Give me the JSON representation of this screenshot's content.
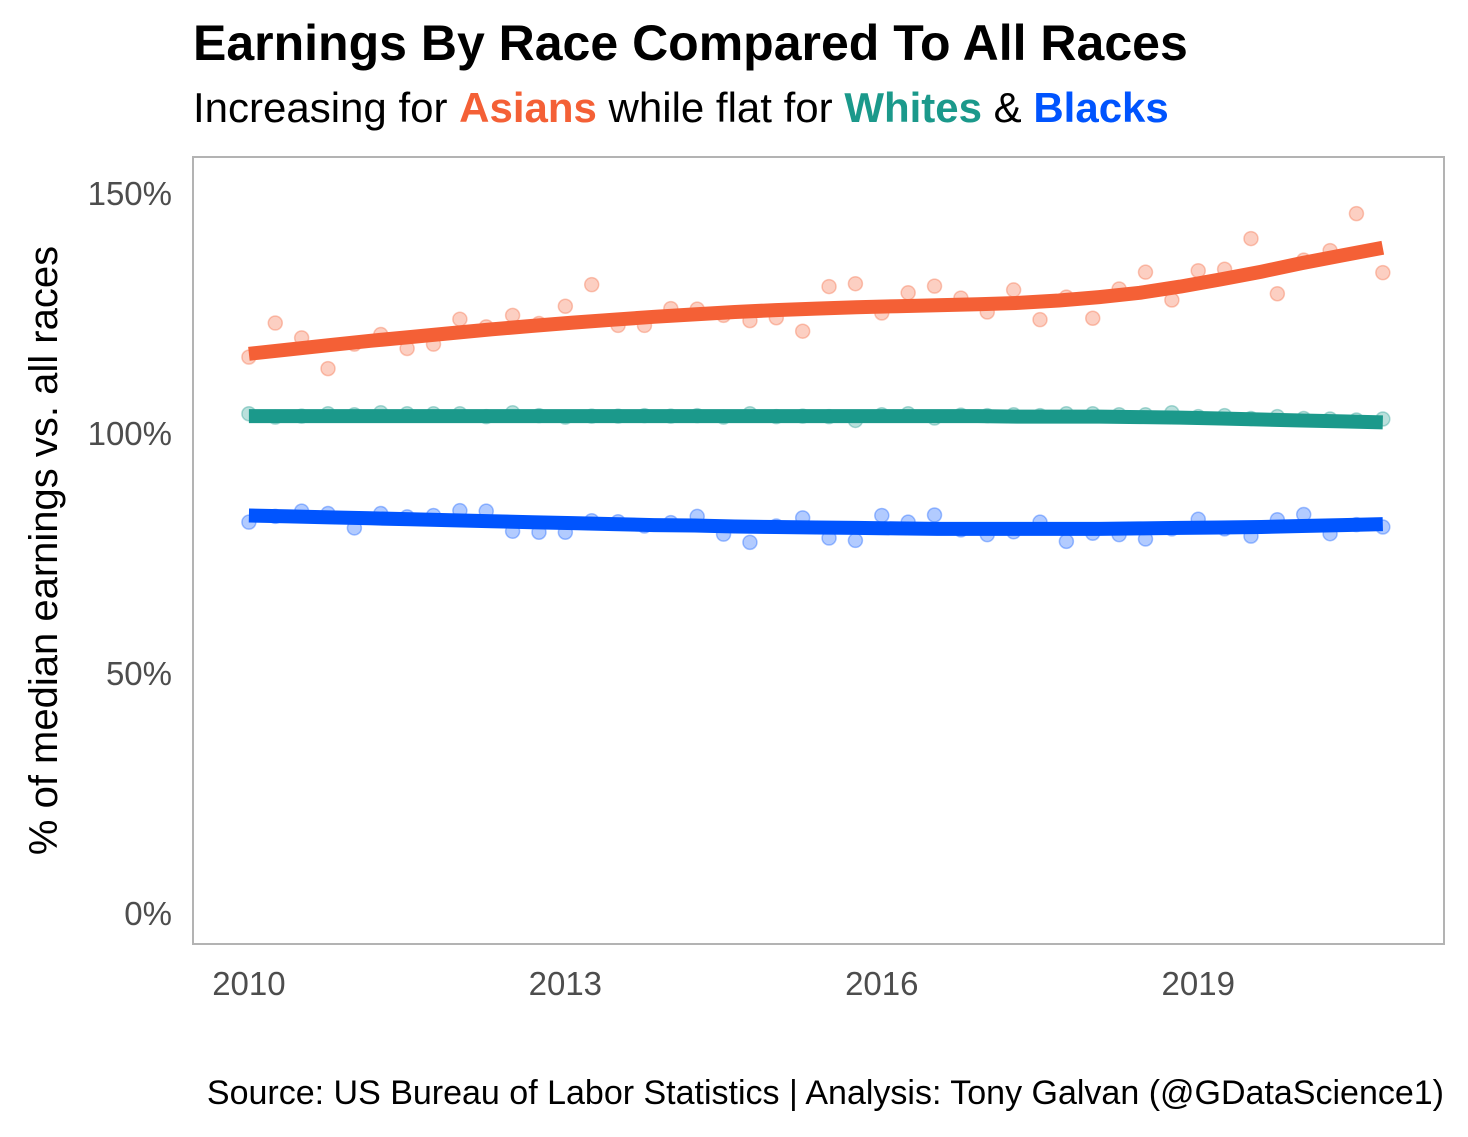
{
  "title": "Earnings By Race Compared To All Races",
  "subtitle": {
    "part1": "Increasing for ",
    "asians": "Asians",
    "part2": " while flat for ",
    "whites": "Whites",
    "part3": " & ",
    "blacks": "Blacks"
  },
  "caption": "Source: US Bureau of Labor Statistics  |  Analysis: Tony Galvan (@GDataScience1)",
  "colors": {
    "asians": "#f46036",
    "whites": "#1b998b",
    "blacks": "#0054fe",
    "panel_border": "#b3b3b3",
    "tick_text": "#4d4d4d"
  },
  "chart_data": {
    "type": "scatter",
    "title": "Earnings By Race Compared To All Races",
    "subtitle": "Increasing for Asians while flat for Whites & Blacks",
    "xlabel": "",
    "ylabel": "% of median earnings vs. all races",
    "xlim": [
      2009.47,
      2021.33
    ],
    "ylim": [
      -6.5,
      157.5
    ],
    "x_ticks": [
      2010,
      2013,
      2016,
      2019
    ],
    "x_tick_labels": [
      "2010",
      "2013",
      "2016",
      "2019"
    ],
    "y_ticks": [
      0,
      50,
      100,
      150
    ],
    "y_tick_labels": [
      "0%",
      "50%",
      "100%",
      "150%"
    ],
    "grid": false,
    "legend": "none",
    "x": [
      2010.0,
      2010.25,
      2010.5,
      2010.75,
      2011.0,
      2011.25,
      2011.5,
      2011.75,
      2012.0,
      2012.25,
      2012.5,
      2012.75,
      2013.0,
      2013.25,
      2013.5,
      2013.75,
      2014.0,
      2014.25,
      2014.5,
      2014.75,
      2015.0,
      2015.25,
      2015.5,
      2015.75,
      2016.0,
      2016.25,
      2016.5,
      2016.75,
      2017.0,
      2017.25,
      2017.5,
      2017.75,
      2018.0,
      2018.25,
      2018.5,
      2018.75,
      2019.0,
      2019.25,
      2019.5,
      2019.75,
      2020.0,
      2020.25,
      2020.5,
      2020.75
    ],
    "series": [
      {
        "name": "Asians",
        "color": "#f46036",
        "points": [
          115.8,
          122.9,
          119.8,
          113.4,
          118.5,
          120.5,
          117.6,
          118.5,
          123.7,
          122.1,
          124.5,
          122.8,
          126.4,
          130.9,
          122.4,
          122.4,
          125.9,
          125.8,
          124.5,
          123.4,
          124.0,
          121.2,
          130.5,
          131.1,
          125.0,
          129.2,
          130.6,
          128.1,
          125.2,
          129.8,
          123.6,
          128.3,
          123.9,
          130.0,
          133.5,
          127.7,
          133.8,
          134.1,
          140.5,
          129.0,
          136.0,
          138.0,
          145.7,
          133.4
        ],
        "trend": [
          116.5,
          117.4,
          118.3,
          119.2,
          120.0,
          120.8,
          121.6,
          122.3,
          123.0,
          123.6,
          124.2,
          124.7,
          125.2,
          125.6,
          125.9,
          126.2,
          126.4,
          126.6,
          126.8,
          127.1,
          127.6,
          128.3,
          129.2,
          130.5,
          132.0,
          133.6,
          135.4,
          137.0,
          138.6
        ]
      },
      {
        "name": "Whites",
        "color": "#1b998b",
        "points": [
          104.0,
          103.3,
          103.5,
          104.0,
          103.8,
          104.2,
          104.0,
          104.0,
          104.0,
          103.4,
          104.2,
          103.6,
          103.3,
          103.5,
          103.5,
          103.6,
          103.5,
          103.6,
          103.3,
          104.0,
          103.4,
          103.5,
          103.4,
          102.6,
          103.8,
          104.0,
          103.1,
          103.7,
          103.6,
          103.8,
          103.6,
          104.0,
          104.0,
          103.8,
          103.8,
          104.2,
          103.4,
          103.6,
          103.0,
          103.4,
          103.0,
          102.9,
          102.7,
          102.9
        ],
        "trend": [
          103.5,
          103.5,
          103.5,
          103.5,
          103.5,
          103.5,
          103.5,
          103.5,
          103.5,
          103.5,
          103.5,
          103.5,
          103.5,
          103.5,
          103.5,
          103.5,
          103.5,
          103.5,
          103.5,
          103.4,
          103.4,
          103.4,
          103.3,
          103.2,
          103.0,
          102.8,
          102.6,
          102.4,
          102.2
        ]
      },
      {
        "name": "Blacks",
        "color": "#0054fe",
        "points": [
          81.4,
          82.6,
          83.7,
          83.2,
          80.2,
          83.2,
          82.5,
          82.8,
          83.8,
          83.7,
          79.5,
          79.3,
          79.3,
          81.7,
          81.5,
          80.6,
          81.3,
          82.6,
          78.9,
          77.2,
          80.6,
          82.3,
          78.1,
          77.6,
          82.8,
          81.4,
          82.9,
          79.8,
          78.8,
          79.4,
          81.4,
          77.4,
          79.1,
          78.8,
          77.9,
          80.0,
          82.0,
          80.0,
          78.5,
          81.9,
          83.0,
          79.0,
          80.9,
          80.4
        ],
        "trend": [
          82.8,
          82.6,
          82.4,
          82.2,
          82.0,
          81.8,
          81.6,
          81.4,
          81.2,
          81.0,
          80.8,
          80.7,
          80.5,
          80.4,
          80.3,
          80.2,
          80.1,
          80.0,
          80.0,
          80.0,
          80.0,
          80.0,
          80.1,
          80.2,
          80.3,
          80.4,
          80.6,
          80.8,
          81.0
        ]
      }
    ]
  }
}
